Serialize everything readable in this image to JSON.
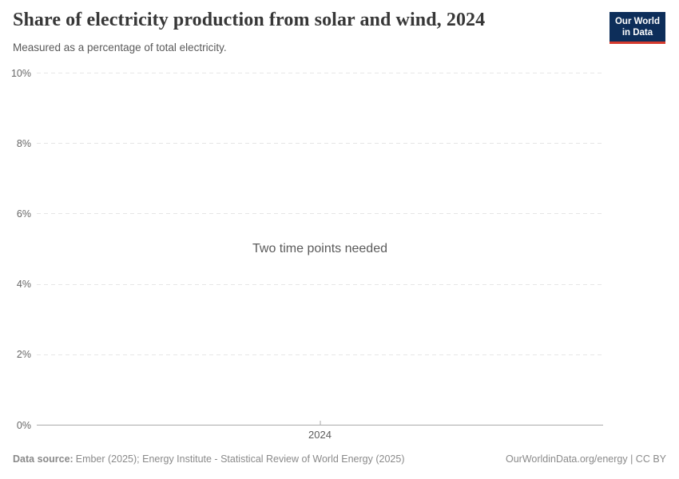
{
  "header": {
    "title": "Share of electricity production from solar and wind, 2024",
    "subtitle": "Measured as a percentage of total electricity."
  },
  "logo": {
    "line1": "Our World",
    "line2": "in Data",
    "background_color": "#0d2e5a",
    "accent_bar_color": "#d53a2d",
    "text_color": "#ffffff"
  },
  "chart_data": {
    "type": "line",
    "title": "Share of electricity production from solar and wind, 2024",
    "subtitle": "Measured as a percentage of total electricity.",
    "status_message": "Two time points needed",
    "series": [],
    "x_ticks": [
      "2024"
    ],
    "y_ticks": [
      {
        "value": 0,
        "label": "0%"
      },
      {
        "value": 2,
        "label": "2%"
      },
      {
        "value": 4,
        "label": "4%"
      },
      {
        "value": 6,
        "label": "6%"
      },
      {
        "value": 8,
        "label": "8%"
      },
      {
        "value": 10,
        "label": "10%"
      }
    ],
    "ylim": [
      0,
      10
    ],
    "xlabel": "",
    "ylabel": "",
    "grid": true,
    "legend_position": "none",
    "gridline_color": "#e6e6e6",
    "axis_line_color": "#ababab"
  },
  "footer": {
    "data_source_label": "Data source:",
    "data_source_text": "Ember (2025); Energy Institute - Statistical Review of World Energy (2025)",
    "attribution": "OurWorldinData.org/energy | CC BY"
  }
}
